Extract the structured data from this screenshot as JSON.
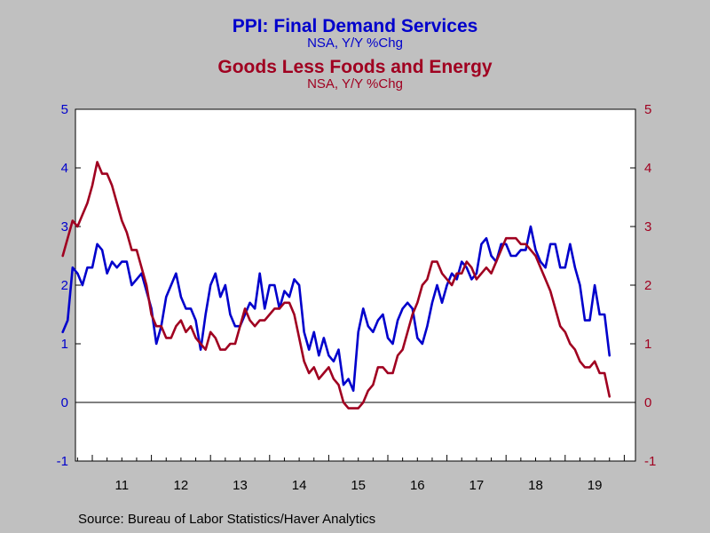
{
  "chart_data": {
    "type": "line",
    "title": "PPI: Final Demand Services",
    "subtitle": "NSA, Y/Y %Chg",
    "title2": "Goods Less Foods and Energy",
    "subtitle2": "NSA, Y/Y %Chg",
    "x_start": "2010-07",
    "x_frequency": "monthly",
    "x_tick_labels": [
      "11",
      "12",
      "13",
      "14",
      "15",
      "16",
      "17",
      "18",
      "19"
    ],
    "ylim": [
      -1,
      5
    ],
    "y_ticks": [
      "-1",
      "0",
      "1",
      "2",
      "3",
      "4",
      "5"
    ],
    "y2lim": [
      -1,
      5
    ],
    "y2_ticks": [
      "-1",
      "0",
      "1",
      "2",
      "3",
      "4",
      "5"
    ],
    "zero_line": true,
    "grid": false,
    "series": [
      {
        "name": "PPI: Final Demand Services",
        "axis": "left",
        "color": "#0000cc",
        "values": [
          1.2,
          1.4,
          2.3,
          2.2,
          2.0,
          2.3,
          2.3,
          2.7,
          2.6,
          2.2,
          2.4,
          2.3,
          2.4,
          2.4,
          2.0,
          2.1,
          2.2,
          1.9,
          1.6,
          1.0,
          1.3,
          1.8,
          2.0,
          2.2,
          1.8,
          1.6,
          1.6,
          1.4,
          0.9,
          1.5,
          2.0,
          2.2,
          1.8,
          2.0,
          1.5,
          1.3,
          1.3,
          1.5,
          1.7,
          1.6,
          2.2,
          1.6,
          2.0,
          2.0,
          1.6,
          1.9,
          1.8,
          2.1,
          2.0,
          1.2,
          0.9,
          1.2,
          0.8,
          1.1,
          0.8,
          0.7,
          0.9,
          0.3,
          0.4,
          0.2,
          1.2,
          1.6,
          1.3,
          1.2,
          1.4,
          1.5,
          1.1,
          1.0,
          1.4,
          1.6,
          1.7,
          1.6,
          1.1,
          1.0,
          1.3,
          1.7,
          2.0,
          1.7,
          2.0,
          2.2,
          2.1,
          2.4,
          2.3,
          2.1,
          2.2,
          2.7,
          2.8,
          2.5,
          2.4,
          2.7,
          2.7,
          2.5,
          2.5,
          2.6,
          2.6,
          3.0,
          2.6,
          2.4,
          2.3,
          2.7,
          2.7,
          2.3,
          2.3,
          2.7,
          2.3,
          2.0,
          1.4,
          1.4,
          2.0,
          1.5,
          1.5,
          0.8
        ]
      },
      {
        "name": "Goods Less Foods and Energy",
        "axis": "right",
        "color": "#a00020",
        "values": [
          2.5,
          2.8,
          3.1,
          3.0,
          3.2,
          3.4,
          3.7,
          4.1,
          3.9,
          3.9,
          3.7,
          3.4,
          3.1,
          2.9,
          2.6,
          2.6,
          2.3,
          2.0,
          1.5,
          1.3,
          1.3,
          1.1,
          1.1,
          1.3,
          1.4,
          1.2,
          1.3,
          1.1,
          1.0,
          0.9,
          1.2,
          1.1,
          0.9,
          0.9,
          1.0,
          1.0,
          1.3,
          1.6,
          1.4,
          1.3,
          1.4,
          1.4,
          1.5,
          1.6,
          1.6,
          1.7,
          1.7,
          1.5,
          1.1,
          0.7,
          0.5,
          0.6,
          0.4,
          0.5,
          0.6,
          0.4,
          0.3,
          0.0,
          -0.1,
          -0.1,
          -0.1,
          0.0,
          0.2,
          0.3,
          0.6,
          0.6,
          0.5,
          0.5,
          0.8,
          0.9,
          1.2,
          1.5,
          1.7,
          2.0,
          2.1,
          2.4,
          2.4,
          2.2,
          2.1,
          2.0,
          2.2,
          2.2,
          2.4,
          2.3,
          2.1,
          2.2,
          2.3,
          2.2,
          2.4,
          2.6,
          2.8,
          2.8,
          2.8,
          2.7,
          2.7,
          2.6,
          2.5,
          2.3,
          2.1,
          1.9,
          1.6,
          1.3,
          1.2,
          1.0,
          0.9,
          0.7,
          0.6,
          0.6,
          0.7,
          0.5,
          0.5,
          0.1
        ]
      }
    ]
  },
  "source": "Source:  Bureau of Labor Statistics/Haver Analytics"
}
